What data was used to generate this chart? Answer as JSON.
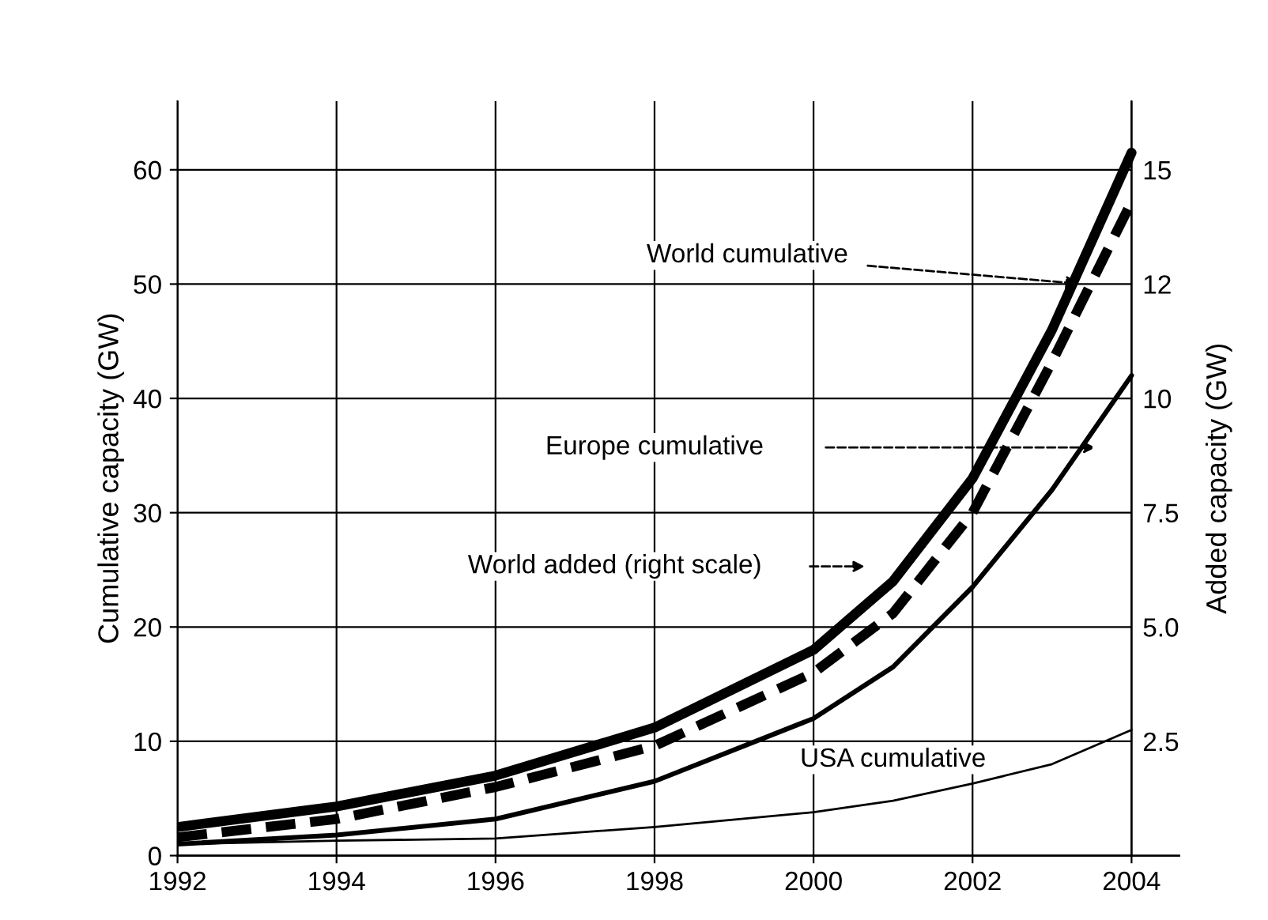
{
  "chart_data": {
    "type": "line",
    "x": [
      1992,
      1994,
      1996,
      1998,
      2000,
      2001,
      2002,
      2003,
      2004
    ],
    "series": [
      {
        "color": "#000000",
        "line_style": "solid",
        "values": [
          2.5,
          4.3,
          7,
          11.2,
          18,
          24,
          33,
          46,
          61.5
        ]
      },
      {
        "color": "#000000",
        "line_style": "dashed",
        "axis": "y2",
        "values": [
          0.4,
          0.8,
          1.5,
          2.4,
          4,
          5.3,
          7.5,
          10.8,
          14.3
        ]
      },
      {
        "color": "#000000",
        "line_style": "solid",
        "values": [
          1,
          1.8,
          3.2,
          6.5,
          12,
          16.5,
          23.5,
          32,
          42
        ]
      },
      {
        "color": "#000000",
        "line_style": "solid",
        "values": [
          1,
          1.3,
          1.5,
          2.5,
          3.8,
          4.8,
          6.3,
          8,
          11
        ]
      }
    ],
    "ylabel": "Cumulative capacity (GW)",
    "y2label": "Added capacity (GW)",
    "xlim": [
      1992,
      2004.6
    ],
    "xticks": [
      1992,
      1994,
      1996,
      1998,
      2000,
      2002,
      2004
    ],
    "ylim": [
      0,
      66
    ],
    "yticks": [
      0,
      10,
      20,
      30,
      40,
      50,
      60
    ],
    "y2lim": [
      0,
      16.5
    ],
    "y2ticks": [
      {
        "value": 2.5,
        "label": "2.5"
      },
      {
        "value": 5,
        "label": "5.0"
      },
      {
        "value": 7.5,
        "label": "7.5"
      },
      {
        "value": 10,
        "label": "10"
      },
      {
        "value": 12.5,
        "label": "12"
      },
      {
        "value": 15,
        "label": "15"
      }
    ],
    "grid": true,
    "annotations": [
      {
        "text": "World cumulative",
        "x": 2003.4,
        "y": 50
      },
      "Europe cumulative",
      "World added (right scale)",
      {
        "text": "USA cumulative",
        "x": 2002,
        "y": 6.3
      }
    ]
  }
}
